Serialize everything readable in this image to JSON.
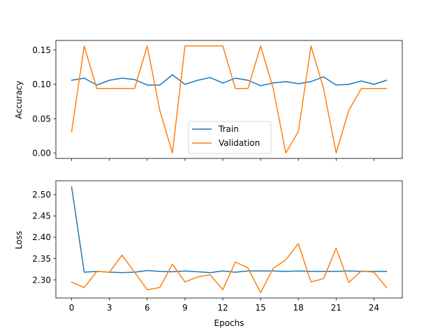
{
  "chart_data": [
    {
      "type": "line",
      "ylabel": "Accuracy",
      "xlim": [
        -1.25,
        26.25
      ],
      "ylim": [
        -0.008,
        0.164
      ],
      "yticks": [
        0.0,
        0.05,
        0.1,
        0.15
      ],
      "ytick_labels": [
        "0.00",
        "0.05",
        "0.10",
        "0.15"
      ],
      "xticks": [
        0,
        3,
        6,
        9,
        12,
        15,
        18,
        21,
        24
      ],
      "show_xtick_labels": false,
      "grid": false,
      "legend": {
        "position": "lower-center",
        "entries": [
          "Train",
          "Validation"
        ]
      },
      "series": [
        {
          "name": "Train",
          "color": "#1f77b4",
          "x": [
            0,
            1,
            2,
            3,
            4,
            5,
            6,
            7,
            8,
            9,
            10,
            11,
            12,
            13,
            14,
            15,
            16,
            17,
            18,
            19,
            20,
            21,
            22,
            23,
            24,
            25
          ],
          "values": [
            0.106,
            0.109,
            0.099,
            0.106,
            0.109,
            0.107,
            0.099,
            0.099,
            0.114,
            0.1,
            0.106,
            0.11,
            0.102,
            0.109,
            0.106,
            0.098,
            0.102,
            0.104,
            0.101,
            0.104,
            0.111,
            0.099,
            0.1,
            0.105,
            0.1,
            0.106
          ]
        },
        {
          "name": "Validation",
          "color": "#ff7f0e",
          "x": [
            0,
            1,
            2,
            3,
            4,
            5,
            6,
            7,
            8,
            9,
            10,
            11,
            12,
            13,
            14,
            15,
            16,
            17,
            18,
            19,
            20,
            21,
            22,
            23,
            24,
            25
          ],
          "values": [
            0.031,
            0.156,
            0.094,
            0.094,
            0.094,
            0.094,
            0.156,
            0.062,
            0.0,
            0.156,
            0.156,
            0.156,
            0.156,
            0.094,
            0.094,
            0.156,
            0.094,
            0.0,
            0.031,
            0.156,
            0.094,
            0.0,
            0.062,
            0.094,
            0.094,
            0.094
          ]
        }
      ]
    },
    {
      "type": "line",
      "xlabel": "Epochs",
      "ylabel": "Loss",
      "xlim": [
        -1.25,
        26.25
      ],
      "ylim": [
        2.2575,
        2.5325
      ],
      "yticks": [
        2.3,
        2.35,
        2.4,
        2.45,
        2.5
      ],
      "ytick_labels": [
        "2.30",
        "2.35",
        "2.40",
        "2.45",
        "2.50"
      ],
      "xticks": [
        0,
        3,
        6,
        9,
        12,
        15,
        18,
        21,
        24
      ],
      "xtick_labels": [
        "0",
        "3",
        "6",
        "9",
        "12",
        "15",
        "18",
        "21",
        "24"
      ],
      "show_xtick_labels": true,
      "grid": false,
      "series": [
        {
          "name": "Train",
          "color": "#1f77b4",
          "x": [
            0,
            1,
            2,
            3,
            4,
            5,
            6,
            7,
            8,
            9,
            10,
            11,
            12,
            13,
            14,
            15,
            16,
            17,
            18,
            19,
            20,
            21,
            22,
            23,
            24,
            25
          ],
          "values": [
            2.518,
            2.318,
            2.32,
            2.318,
            2.317,
            2.318,
            2.322,
            2.32,
            2.319,
            2.321,
            2.319,
            2.317,
            2.321,
            2.318,
            2.321,
            2.321,
            2.321,
            2.32,
            2.321,
            2.32,
            2.32,
            2.32,
            2.321,
            2.32,
            2.32,
            2.32
          ]
        },
        {
          "name": "Validation",
          "color": "#ff7f0e",
          "x": [
            0,
            1,
            2,
            3,
            4,
            5,
            6,
            7,
            8,
            9,
            10,
            11,
            12,
            13,
            14,
            15,
            16,
            17,
            18,
            19,
            20,
            21,
            22,
            23,
            24,
            25
          ],
          "values": [
            2.295,
            2.282,
            2.32,
            2.318,
            2.358,
            2.318,
            2.277,
            2.282,
            2.337,
            2.295,
            2.307,
            2.312,
            2.277,
            2.342,
            2.328,
            2.27,
            2.327,
            2.347,
            2.385,
            2.295,
            2.303,
            2.374,
            2.294,
            2.321,
            2.318,
            2.282
          ]
        }
      ]
    }
  ]
}
